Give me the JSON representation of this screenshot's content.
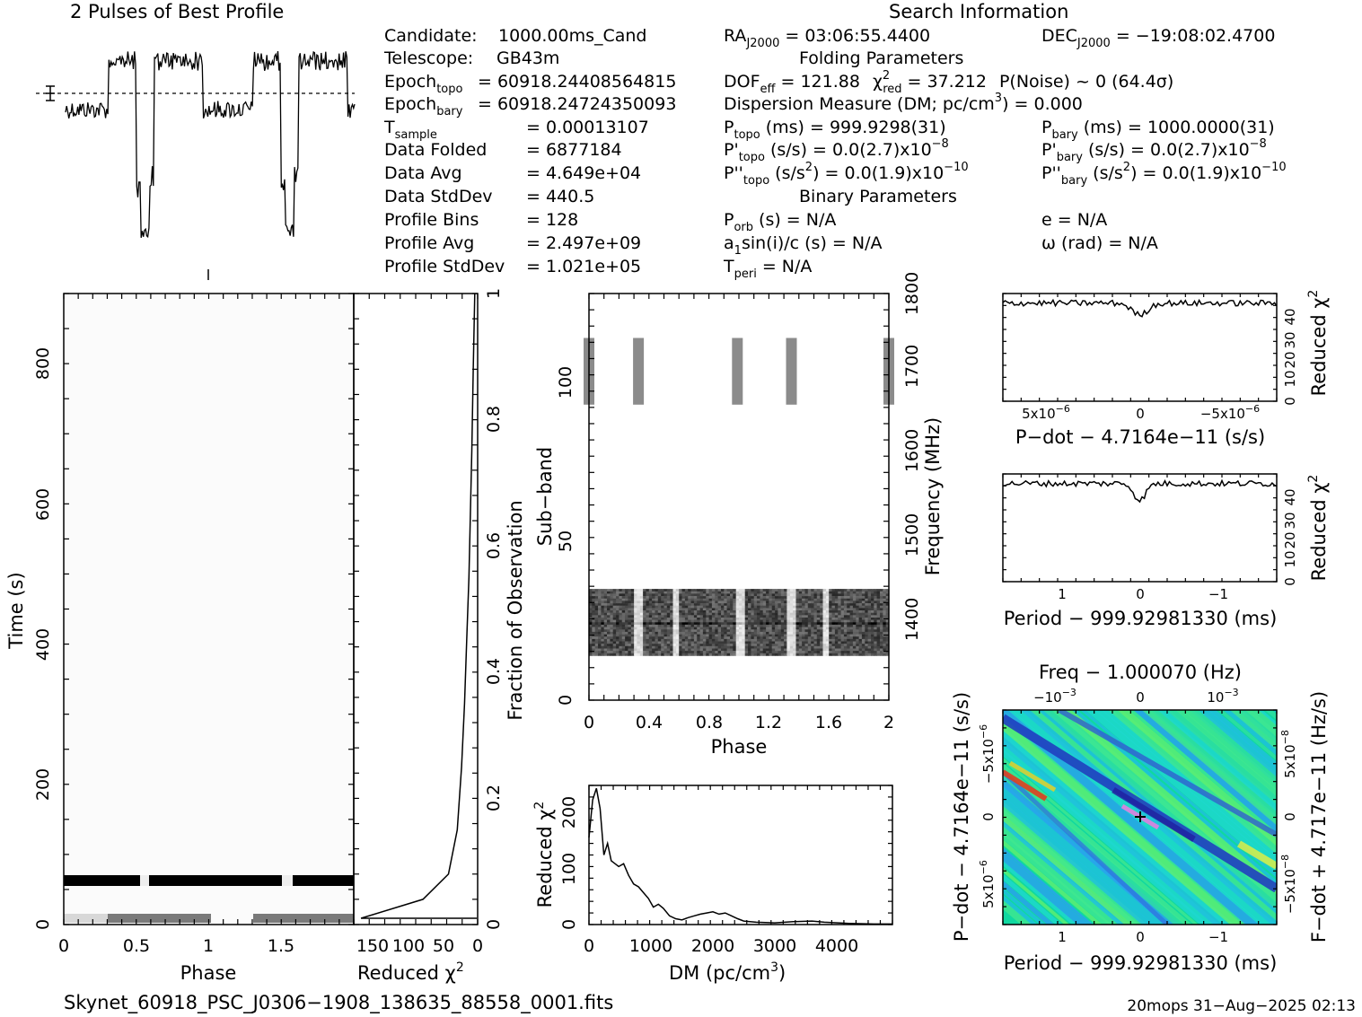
{
  "texts": {
    "profile_title": "2 Pulses of Best Profile",
    "search_title": "Search Information",
    "filename": "Skynet_60918_PSC_J0306−1908_138635_88558_0001.fits",
    "footer": "20mops 31−Aug−2025 02:13"
  },
  "info": {
    "candidate_label": "Candidate:",
    "candidate": "1000.00ms_Cand",
    "telescope_label": "Telescope:",
    "telescope": "GB43m",
    "epoch_topo_label": "Epoch",
    "epoch_topo_sub": "topo",
    "epoch_topo": "= 60918.24408564815",
    "epoch_bary_label": "Epoch",
    "epoch_bary_sub": "bary",
    "epoch_bary": "= 60918.24724350093",
    "tsample_label": "T",
    "tsample_sub": "sample",
    "tsample": "=   0.00013107",
    "data_folded_label": "Data Folded",
    "data_folded": "=   6877184",
    "data_avg_label": "Data Avg",
    "data_avg": "=   4.649e+04",
    "data_std_label": "Data StdDev",
    "data_std": "=   440.5",
    "prof_bins_label": "Profile Bins",
    "prof_bins": "=   128",
    "prof_avg_label": "Profile Avg",
    "prof_avg": "=   2.497e+09",
    "prof_std_label": "Profile StdDev",
    "prof_std": "=   1.021e+05",
    "ra_label": "RA",
    "ra_sub": "J2000",
    "ra": "= 03:06:55.4400",
    "dec_label": "DEC",
    "dec_sub": "J2000",
    "dec": "= −19:08:02.4700",
    "folding_title": "Folding Parameters",
    "dof_label": "DOF",
    "dof_sub": "eff",
    "dof": "= 121.88",
    "chi_label": "χ",
    "chi_sub": "red",
    "chi": "= 37.212",
    "pnoise": "P(Noise) ~ 0   (64.4σ)",
    "dm_line": "Dispersion Measure (DM; pc/cm",
    "dm_value": ") = 0.000",
    "ptopo_label": "P",
    "ptopo_sub": "topo",
    "ptopo": "(ms) =  999.9298(31)",
    "pbary_label": "P",
    "pbary_sub": "bary",
    "pbary": "(ms) =  1000.0000(31)",
    "pdtopo_label": "P'",
    "pdtopo_sub": "topo",
    "pdtopo": "(s/s) = 0.0(2.7)x10",
    "pdtopo_exp": "−8",
    "pdbary_label": "P'",
    "pdbary_sub": "bary",
    "pdbary": "(s/s) = 0.0(2.7)x10",
    "pdbary_exp": "−8",
    "pddtopo_label": "P''",
    "pddtopo_sub": "topo",
    "pddtopo": "(s/s",
    "pddtopo_rest": ") = 0.0(1.9)x10",
    "pddtopo_exp": "−10",
    "pddbary_label": "P''",
    "pddbary_sub": "bary",
    "pddbary": "(s/s",
    "pddbary_rest": ") = 0.0(1.9)x10",
    "pddbary_exp": "−10",
    "binary_title": "Binary Parameters",
    "porb_label": "P",
    "porb_sub": "orb",
    "porb": "(s) = N/A",
    "e": "e = N/A",
    "asini_label": "a",
    "asini_sub": "1",
    "asini": "sin(i)/c (s) = N/A",
    "omega": "ω (rad) = N/A",
    "tperi_label": "T",
    "tperi_sub": "peri",
    "tperi": "= N/A"
  },
  "labels": {
    "time_axis": "Time (s)",
    "phase": "Phase",
    "reduced_chi": "Reduced χ",
    "fraction": "Fraction of Observation",
    "subband": "Sub−band",
    "frequency": "Frequency (MHz)",
    "dm_axis": "DM (pc/cm",
    "pdot_label": "P−dot − 4.7164e−11 (s/s)",
    "period_label": "Period − 999.92981330 (ms)",
    "freq_label": "Freq − 1.000070 (Hz)",
    "pdot_axis": "P−dot − 4.7164e−11 (s/s)",
    "fdot_axis": "F−dot + 4.717e−11 (Hz/s)"
  },
  "chart_data": [
    {
      "type": "line",
      "id": "pulse_profile",
      "title": "2 Pulses of Best Profile",
      "xlim": [
        0,
        2
      ],
      "dips_phase": [
        0.55,
        1.55
      ],
      "on_pulse_phase": [
        [
          0.3,
          0.95
        ],
        [
          1.3,
          1.95
        ]
      ]
    },
    {
      "type": "heatmap",
      "id": "time_phase",
      "xlabel": "Phase",
      "ylabel": "Time (s)",
      "xlim": [
        0,
        2
      ],
      "ylim": [
        0,
        900
      ],
      "xticks": [
        "0",
        "0.5",
        "1",
        "1.5"
      ],
      "yticks": [
        "0",
        "200",
        "400",
        "600",
        "800"
      ],
      "dark_band_time": [
        60,
        72
      ],
      "gray_band_time": [
        5,
        15
      ]
    },
    {
      "type": "line",
      "id": "time_chi2",
      "xlabel": "Reduced χ",
      "ylabel": "Fraction of Observation",
      "xticks": [
        "150",
        "100",
        "50",
        "0"
      ],
      "yticks": [
        "0",
        "0.2",
        "0.4",
        "0.6",
        "0.8",
        "1"
      ],
      "x": [
        1,
        160,
        75,
        40,
        28,
        22,
        18,
        15,
        12,
        10,
        8,
        6,
        4
      ],
      "y": [
        0.01,
        0.01,
        0.04,
        0.08,
        0.15,
        0.25,
        0.35,
        0.45,
        0.55,
        0.65,
        0.75,
        0.88,
        1.0
      ]
    },
    {
      "type": "heatmap",
      "id": "subband_phase",
      "xlabel": "Phase",
      "ylabel": "Sub−band",
      "y2label": "Frequency (MHz)",
      "xlim": [
        0,
        2
      ],
      "ylim": [
        0,
        128
      ],
      "xticks": [
        "0",
        "0.4",
        "0.8",
        "1.2",
        "1.6",
        "2"
      ],
      "yticks": [
        "0",
        "50",
        "100"
      ],
      "y2ticks": [
        "1400",
        "1500",
        "1600",
        "1700",
        "1800"
      ],
      "block_subbands": [
        14,
        35
      ],
      "pulse_subbands": [
        93,
        114
      ]
    },
    {
      "type": "line",
      "id": "dm_chi2",
      "xlabel": "DM (pc/cm",
      "ylabel": "Reduced χ",
      "xticks": [
        "0",
        "1000",
        "2000",
        "3000",
        "4000"
      ],
      "yticks": [
        "0",
        "100",
        "200"
      ],
      "xlim": [
        0,
        4900
      ],
      "ylim": [
        0,
        240
      ],
      "x": [
        0,
        60,
        120,
        180,
        240,
        300,
        360,
        420,
        480,
        560,
        640,
        720,
        800,
        880,
        960,
        1040,
        1120,
        1200,
        1300,
        1400,
        1500,
        1600,
        1700,
        1800,
        1900,
        2000,
        2100,
        2200,
        2300,
        2400,
        2500,
        2700,
        3000,
        3300,
        3600,
        3800,
        4200,
        4600,
        4900
      ],
      "y": [
        150,
        215,
        235,
        200,
        120,
        140,
        110,
        105,
        100,
        105,
        85,
        70,
        65,
        55,
        45,
        30,
        35,
        28,
        15,
        10,
        8,
        12,
        15,
        18,
        20,
        22,
        18,
        20,
        15,
        10,
        6,
        4,
        3,
        5,
        6,
        4,
        2,
        1,
        1
      ]
    },
    {
      "type": "line",
      "id": "pdot_chi2",
      "xlabel": "P−dot − 4.7164e−11 (s/s)",
      "ylabel": "Reduced χ",
      "xticks": [
        "5x10",
        "0",
        "−5x10"
      ],
      "yticks": [
        "0",
        "10",
        "20",
        "30",
        "40"
      ],
      "ylim": [
        0,
        45
      ]
    },
    {
      "type": "line",
      "id": "period_chi2",
      "xlabel": "Period − 999.92981330 (ms)",
      "ylabel": "Reduced χ",
      "xticks": [
        "1",
        "0",
        "−1"
      ],
      "yticks": [
        "0",
        "10",
        "20",
        "30",
        "40"
      ],
      "ylim": [
        0,
        45
      ]
    },
    {
      "type": "heatmap",
      "id": "p_pdot",
      "xlabel": "Period − 999.92981330 (ms)",
      "ylabel": "P−dot − 4.7164e−11 (s/s)",
      "top_label": "Freq − 1.000070 (Hz)",
      "xticks": [
        "1",
        "0",
        "−1"
      ],
      "top_ticks": [
        "−10",
        "0",
        "10"
      ],
      "yticks": [
        "−5x10",
        "0",
        "5x10"
      ],
      "y2ticks": [
        "5x10",
        "0",
        "−5x10"
      ]
    }
  ]
}
